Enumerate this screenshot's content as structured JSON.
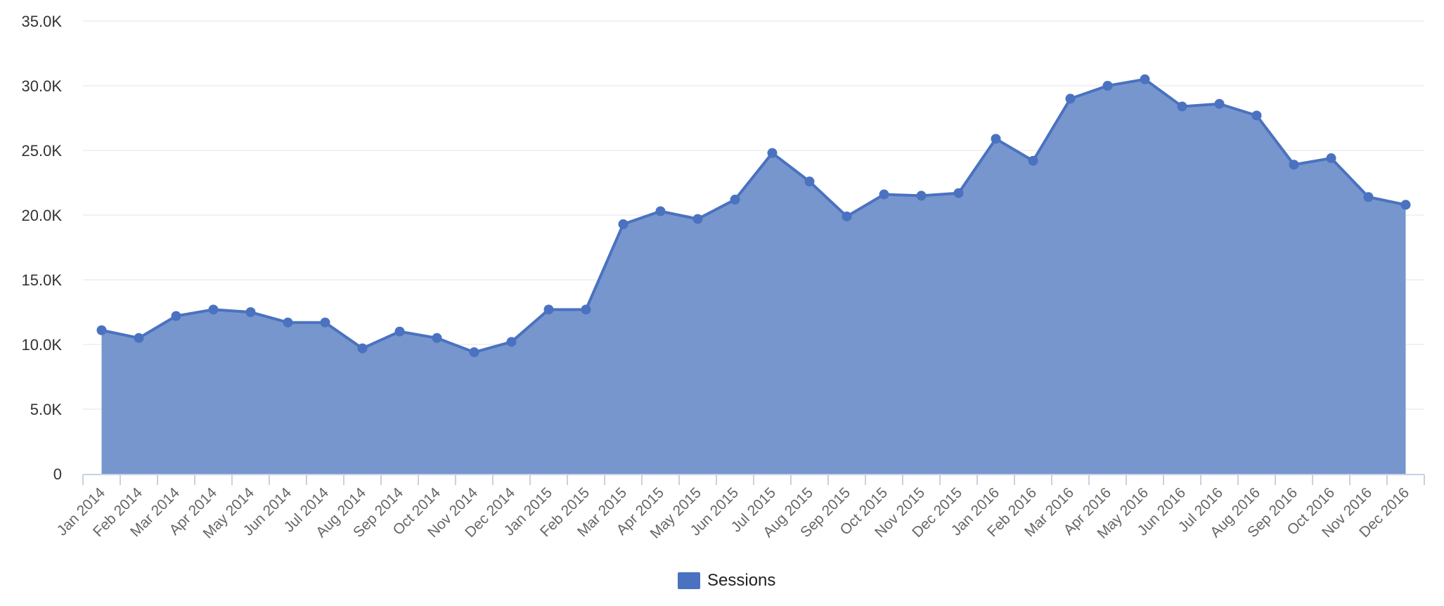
{
  "chart_data": {
    "type": "area",
    "title": "",
    "xlabel": "",
    "ylabel": "",
    "ylim": [
      0,
      35000
    ],
    "y_ticks": [
      {
        "value": 0,
        "label": "0"
      },
      {
        "value": 5000,
        "label": "5.0K"
      },
      {
        "value": 10000,
        "label": "10.0K"
      },
      {
        "value": 15000,
        "label": "15.0K"
      },
      {
        "value": 20000,
        "label": "20.0K"
      },
      {
        "value": 25000,
        "label": "25.0K"
      },
      {
        "value": 30000,
        "label": "30.0K"
      },
      {
        "value": 35000,
        "label": "35.0K"
      }
    ],
    "grid": true,
    "legend_position": "bottom-center",
    "categories": [
      "Jan 2014",
      "Feb 2014",
      "Mar 2014",
      "Apr 2014",
      "May 2014",
      "Jun 2014",
      "Jul 2014",
      "Aug 2014",
      "Sep 2014",
      "Oct 2014",
      "Nov 2014",
      "Dec 2014",
      "Jan 2015",
      "Feb 2015",
      "Mar 2015",
      "Apr 2015",
      "May 2015",
      "Jun 2015",
      "Jul 2015",
      "Aug 2015",
      "Sep 2015",
      "Oct 2015",
      "Nov 2015",
      "Dec 2015",
      "Jan 2016",
      "Feb 2016",
      "Mar 2016",
      "Apr 2016",
      "May 2016",
      "Jun 2016",
      "Jul 2016",
      "Aug 2016",
      "Sep 2016",
      "Oct 2016",
      "Nov 2016",
      "Dec 2016"
    ],
    "series": [
      {
        "name": "Sessions",
        "color": "#4a72c0",
        "fill_color": "#7796cd",
        "values": [
          11100,
          10500,
          12200,
          12700,
          12500,
          11700,
          11700,
          9700,
          11000,
          10500,
          9400,
          10200,
          12700,
          12700,
          19300,
          20300,
          19700,
          21200,
          24800,
          22600,
          19900,
          21600,
          21500,
          21700,
          25900,
          24200,
          29000,
          30000,
          30500,
          28400,
          28600,
          27700,
          23900,
          24400,
          21400,
          20800
        ]
      }
    ]
  }
}
